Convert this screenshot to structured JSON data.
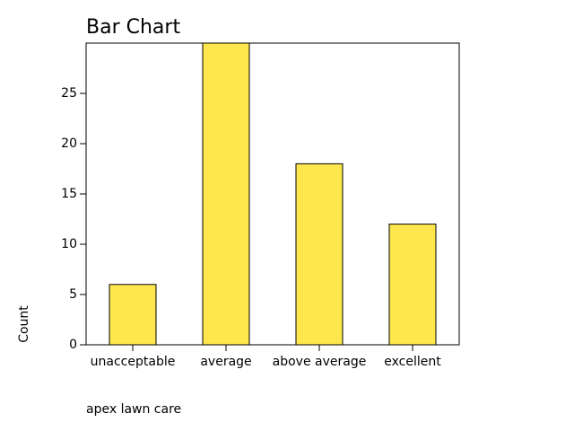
{
  "chart_data": {
    "type": "bar",
    "title": "Bar Chart",
    "x_label": "apex lawn care",
    "y_label": "Count",
    "categories": [
      "unacceptable",
      "average",
      "above average",
      "excellent"
    ],
    "values": [
      6,
      30,
      18,
      12
    ],
    "color": "#fde74c",
    "ylim": [
      0,
      30
    ],
    "yticks": [
      0,
      5,
      10,
      15,
      20,
      25
    ],
    "grid": false
  }
}
